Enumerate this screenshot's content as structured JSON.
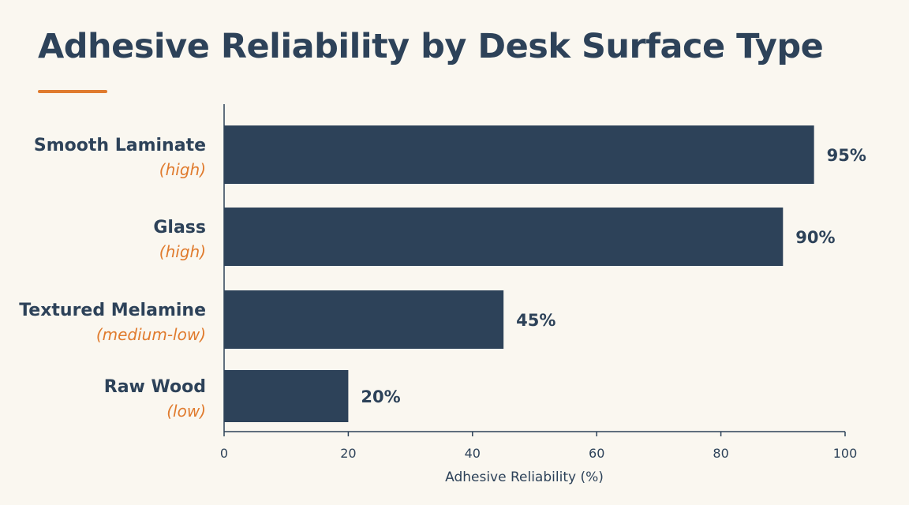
{
  "title": "Adhesive Reliability by Desk Surface Type",
  "colors": {
    "background": "#FAF7F0",
    "bar": "#2D4259",
    "text": "#2D4259",
    "accent": "#E07B2E"
  },
  "chart_data": {
    "type": "bar",
    "orientation": "horizontal",
    "title": "Adhesive Reliability by Desk Surface Type",
    "xlabel": "Adhesive Reliability (%)",
    "ylabel": "",
    "xlim": [
      0,
      100
    ],
    "xticks": [
      0,
      20,
      40,
      60,
      80,
      100
    ],
    "grid": false,
    "categories": [
      "Smooth Laminate",
      "Glass",
      "Textured Melamine",
      "Raw Wood"
    ],
    "sublabels": [
      "(high)",
      "(high)",
      "(medium-low)",
      "(low)"
    ],
    "values": [
      95,
      90,
      45,
      20
    ],
    "value_labels": [
      "95%",
      "90%",
      "45%",
      "20%"
    ]
  }
}
